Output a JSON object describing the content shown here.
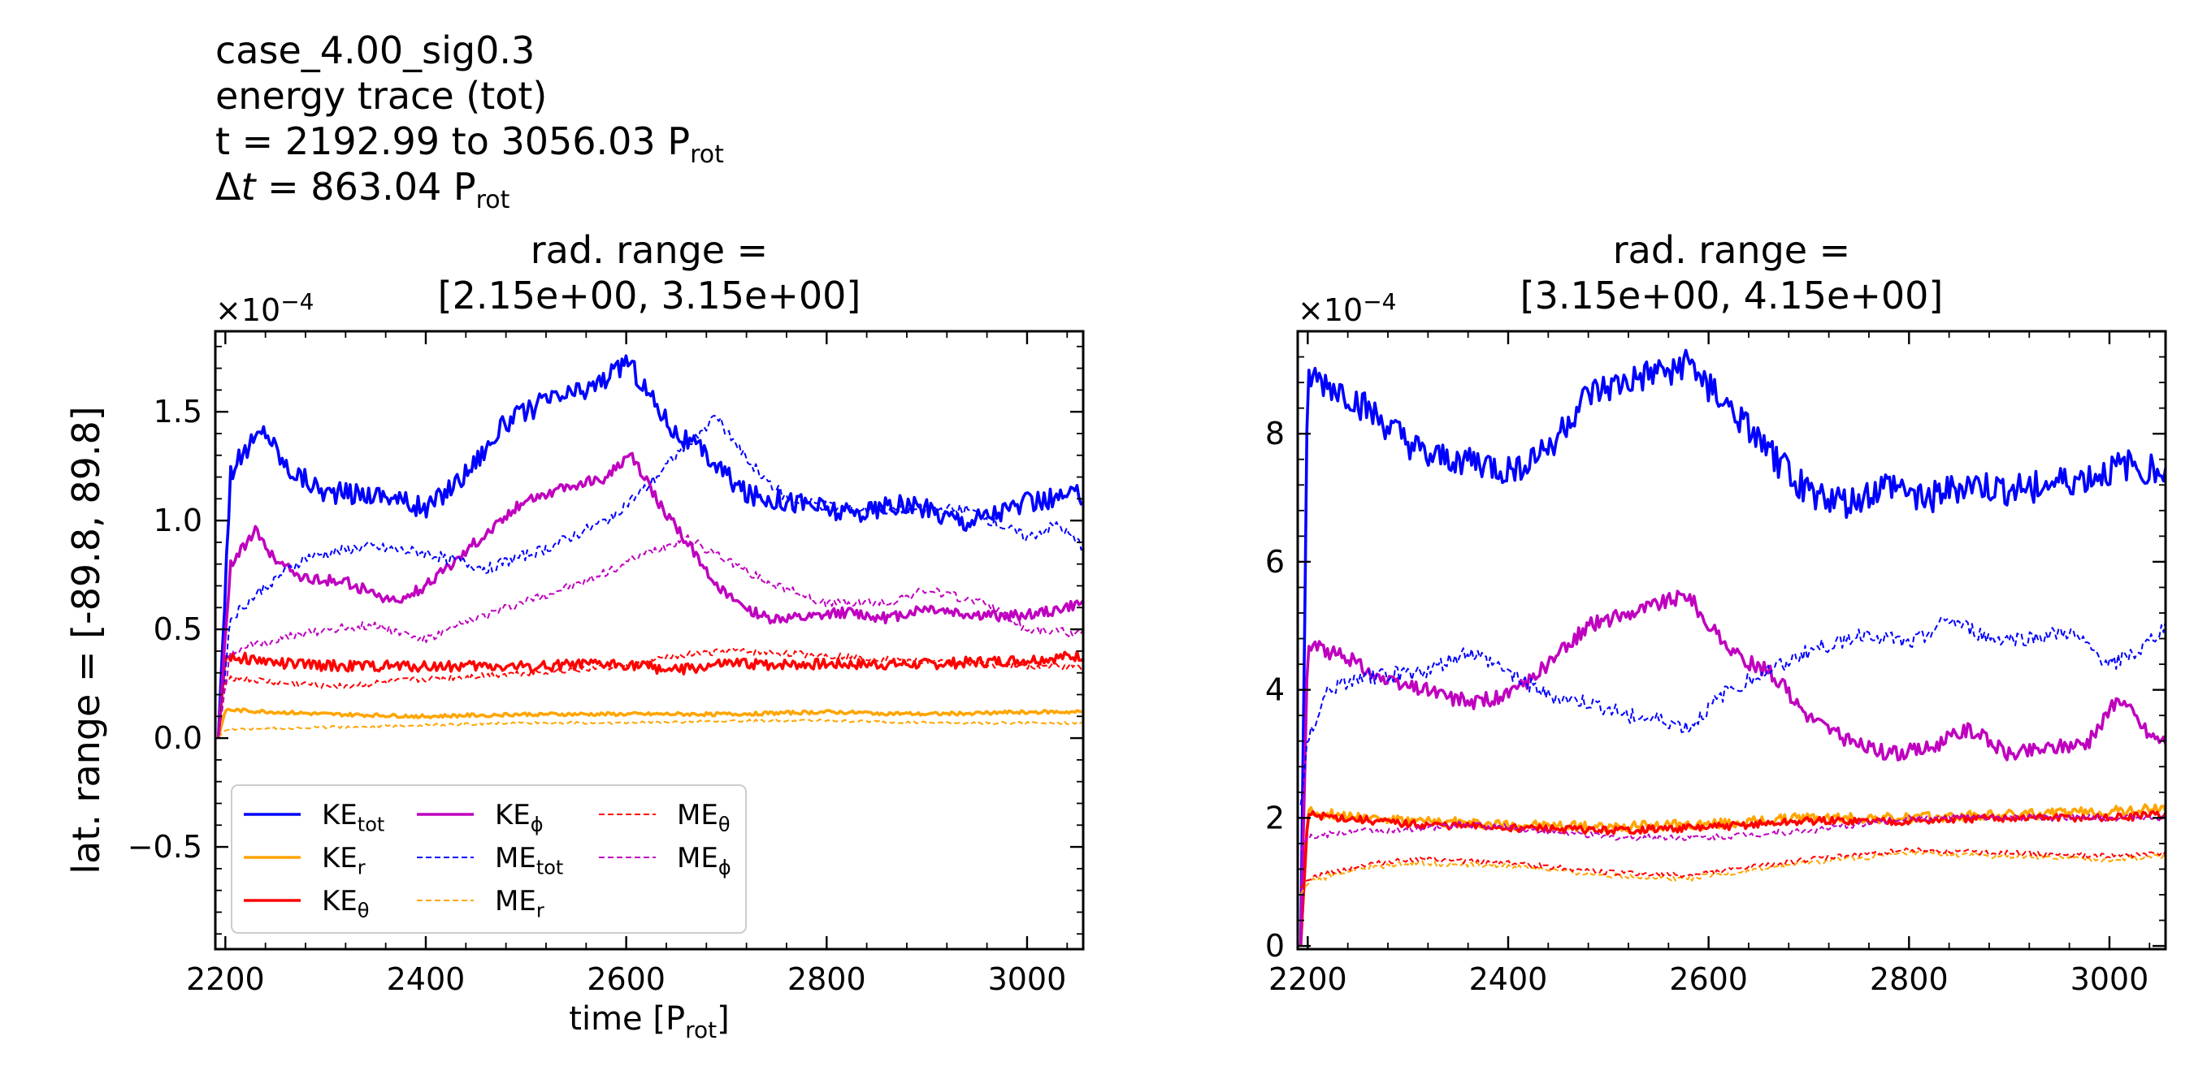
{
  "header": {
    "case": "case_4.00_sig0.3",
    "quantity": "energy trace (tot)",
    "time_line_prefix": "t = 2192.99 to 3056.03 P",
    "time_line_sub": "rot",
    "dt_symbol": "Δ",
    "dt_var": "t",
    "dt_value": " = 863.04 P",
    "dt_sub": "rot"
  },
  "colors": {
    "KE_tot": "#0000ff",
    "KE_r": "#ffa500",
    "KE_theta": "#ff0000",
    "KE_phi": "#bf00bf",
    "ME_tot": "#0000ff",
    "ME_r": "#ffa500",
    "ME_theta": "#ff0000",
    "ME_phi": "#bf00bf"
  },
  "chart_data": [
    {
      "type": "line",
      "title_line1": "rad. range =",
      "title_line2": "[2.15e+00, 3.15e+00]",
      "xlabel": "time [P",
      "xlabel_sub": "rot",
      "xlabel_end": "]",
      "ylabel": "lat. range = [-89.8, 89.8]",
      "offset_label": "×10",
      "offset_exp": "−4",
      "xlim": [
        2190,
        3056
      ],
      "ylim": [
        -0.97,
        1.87
      ],
      "xticks": [
        2200,
        2400,
        2600,
        2800,
        3000
      ],
      "xtick_labels": [
        "2200",
        "2400",
        "2600",
        "2800",
        "3000"
      ],
      "yticks": [
        -0.5,
        0.0,
        0.5,
        1.0,
        1.5
      ],
      "ytick_labels": [
        "−0.5",
        "0.0",
        "0.5",
        "1.0",
        "1.5"
      ],
      "legend": {
        "placement": "lower-left",
        "entries": [
          {
            "base": "KE",
            "sub": "tot"
          },
          {
            "base": "KE",
            "sub": "r"
          },
          {
            "base": "KE",
            "sub": "θ"
          },
          {
            "base": "KE",
            "sub": "ϕ"
          },
          {
            "base": "ME",
            "sub": "tot"
          },
          {
            "base": "ME",
            "sub": "r"
          },
          {
            "base": "ME",
            "sub": "θ"
          },
          {
            "base": "ME",
            "sub": "ϕ"
          }
        ]
      },
      "series": [
        {
          "name": "KE_tot",
          "style": "solid",
          "x": [
            2193,
            2205,
            2225,
            2240,
            2260,
            2300,
            2360,
            2400,
            2440,
            2480,
            2520,
            2560,
            2590,
            2600,
            2620,
            2650,
            2680,
            2720,
            2780,
            2820,
            2880,
            2940,
            3000,
            3056
          ],
          "values": [
            0.0,
            1.22,
            1.35,
            1.42,
            1.25,
            1.13,
            1.12,
            1.05,
            1.22,
            1.45,
            1.55,
            1.6,
            1.68,
            1.75,
            1.6,
            1.4,
            1.3,
            1.12,
            1.08,
            1.03,
            1.07,
            1.0,
            1.08,
            1.12
          ]
        },
        {
          "name": "KE_r",
          "style": "solid",
          "x": [
            2193,
            2200,
            2300,
            2400,
            2500,
            2600,
            2700,
            2800,
            2900,
            3000,
            3056
          ],
          "values": [
            0.0,
            0.13,
            0.11,
            0.1,
            0.11,
            0.11,
            0.11,
            0.12,
            0.11,
            0.12,
            0.12
          ]
        },
        {
          "name": "KE_theta",
          "style": "solid",
          "x": [
            2193,
            2200,
            2260,
            2320,
            2400,
            2500,
            2600,
            2650,
            2700,
            2800,
            2900,
            3000,
            3056
          ],
          "values": [
            0.0,
            0.38,
            0.34,
            0.33,
            0.33,
            0.33,
            0.34,
            0.31,
            0.34,
            0.34,
            0.34,
            0.36,
            0.38
          ]
        },
        {
          "name": "KE_phi",
          "style": "solid",
          "x": [
            2193,
            2205,
            2230,
            2250,
            2280,
            2320,
            2370,
            2400,
            2450,
            2500,
            2540,
            2580,
            2605,
            2630,
            2660,
            2700,
            2740,
            2780,
            2820,
            2860,
            2900,
            2940,
            2980,
            3020,
            3056
          ],
          "values": [
            0.0,
            0.8,
            0.95,
            0.82,
            0.73,
            0.72,
            0.62,
            0.7,
            0.9,
            1.1,
            1.15,
            1.2,
            1.3,
            1.1,
            0.9,
            0.65,
            0.55,
            0.55,
            0.58,
            0.55,
            0.6,
            0.57,
            0.56,
            0.58,
            0.62
          ]
        },
        {
          "name": "ME_tot",
          "style": "dashed",
          "x": [
            2193,
            2205,
            2240,
            2280,
            2340,
            2400,
            2460,
            2520,
            2580,
            2620,
            2660,
            2690,
            2720,
            2760,
            2820,
            2880,
            2940,
            3000,
            3030,
            3056
          ],
          "values": [
            0.0,
            0.55,
            0.7,
            0.83,
            0.88,
            0.85,
            0.78,
            0.87,
            1.0,
            1.15,
            1.35,
            1.48,
            1.28,
            1.1,
            1.05,
            1.05,
            1.05,
            0.92,
            0.98,
            0.88
          ]
        },
        {
          "name": "ME_r",
          "style": "dashed",
          "x": [
            2193,
            2200,
            2300,
            2400,
            2500,
            2600,
            2700,
            2800,
            2900,
            3000,
            3056
          ],
          "values": [
            0.0,
            0.04,
            0.05,
            0.06,
            0.07,
            0.07,
            0.08,
            0.08,
            0.07,
            0.07,
            0.07
          ]
        },
        {
          "name": "ME_theta",
          "style": "dashed",
          "x": [
            2193,
            2200,
            2260,
            2320,
            2400,
            2500,
            2600,
            2650,
            2700,
            2800,
            2900,
            3000,
            3056
          ],
          "values": [
            0.0,
            0.28,
            0.25,
            0.24,
            0.27,
            0.3,
            0.33,
            0.38,
            0.4,
            0.38,
            0.35,
            0.33,
            0.33
          ]
        },
        {
          "name": "ME_phi",
          "style": "dashed",
          "x": [
            2193,
            2205,
            2250,
            2300,
            2350,
            2400,
            2450,
            2500,
            2560,
            2620,
            2660,
            2700,
            2740,
            2800,
            2860,
            2900,
            2960,
            3000,
            3056
          ],
          "values": [
            0.0,
            0.4,
            0.45,
            0.5,
            0.52,
            0.45,
            0.55,
            0.63,
            0.72,
            0.85,
            0.92,
            0.82,
            0.72,
            0.62,
            0.62,
            0.68,
            0.62,
            0.5,
            0.48
          ]
        }
      ]
    },
    {
      "type": "line",
      "title_line1": "rad. range =",
      "title_line2": "[3.15e+00, 4.15e+00]",
      "offset_label": "×10",
      "offset_exp": "−4",
      "xlim": [
        2190,
        3056
      ],
      "ylim": [
        -0.05,
        9.6
      ],
      "xticks": [
        2200,
        2400,
        2600,
        2800,
        3000
      ],
      "xtick_labels": [
        "2200",
        "2400",
        "2600",
        "2800",
        "3000"
      ],
      "yticks": [
        0,
        2,
        4,
        6,
        8
      ],
      "ytick_labels": [
        "0",
        "2",
        "4",
        "6",
        "8"
      ],
      "series": [
        {
          "name": "KE_tot",
          "style": "solid",
          "x": [
            2193,
            2200,
            2240,
            2280,
            2320,
            2360,
            2400,
            2440,
            2480,
            2520,
            2560,
            2580,
            2620,
            2660,
            2700,
            2740,
            2780,
            2820,
            2860,
            2900,
            2940,
            2980,
            3020,
            3056
          ],
          "values": [
            0.0,
            8.9,
            8.6,
            8.1,
            7.6,
            7.6,
            7.4,
            7.8,
            8.6,
            8.8,
            9.0,
            9.1,
            8.4,
            7.7,
            7.1,
            6.9,
            7.2,
            7.0,
            7.2,
            7.1,
            7.2,
            7.3,
            7.5,
            7.4
          ]
        },
        {
          "name": "KE_r",
          "style": "solid",
          "x": [
            2193,
            2200,
            2300,
            2400,
            2500,
            2600,
            2700,
            2800,
            2900,
            3000,
            3056
          ],
          "values": [
            0.0,
            2.1,
            1.95,
            1.9,
            1.85,
            1.9,
            2.0,
            2.0,
            2.05,
            2.1,
            2.15
          ]
        },
        {
          "name": "KE_theta",
          "style": "solid",
          "x": [
            2193,
            2200,
            2300,
            2400,
            2500,
            2600,
            2700,
            2800,
            2900,
            3000,
            3056
          ],
          "values": [
            0.0,
            2.05,
            1.9,
            1.85,
            1.8,
            1.85,
            1.95,
            1.95,
            2.0,
            2.0,
            2.05
          ]
        },
        {
          "name": "KE_phi",
          "style": "solid",
          "x": [
            2193,
            2200,
            2240,
            2280,
            2320,
            2360,
            2400,
            2440,
            2480,
            2520,
            2560,
            2580,
            2600,
            2630,
            2660,
            2700,
            2740,
            2780,
            2820,
            2860,
            2900,
            2940,
            2980,
            3010,
            3040,
            3056
          ],
          "values": [
            0.0,
            4.7,
            4.5,
            4.1,
            4.0,
            3.8,
            3.9,
            4.4,
            5.0,
            5.2,
            5.4,
            5.5,
            5.0,
            4.5,
            4.3,
            3.6,
            3.2,
            3.0,
            3.1,
            3.4,
            3.0,
            3.1,
            3.2,
            3.9,
            3.3,
            3.2
          ]
        },
        {
          "name": "ME_tot",
          "style": "dashed",
          "x": [
            2193,
            2200,
            2220,
            2260,
            2320,
            2360,
            2400,
            2440,
            2480,
            2520,
            2560,
            2580,
            2620,
            2660,
            2700,
            2760,
            2800,
            2840,
            2880,
            2920,
            2960,
            3000,
            3030,
            3056
          ],
          "values": [
            2.2,
            3.2,
            4.0,
            4.2,
            4.3,
            4.6,
            4.3,
            3.9,
            3.8,
            3.6,
            3.5,
            3.4,
            4.0,
            4.3,
            4.6,
            4.9,
            4.7,
            5.1,
            4.8,
            4.8,
            4.9,
            4.4,
            4.6,
            5.0
          ]
        },
        {
          "name": "ME_r",
          "style": "dashed",
          "x": [
            2193,
            2200,
            2250,
            2300,
            2400,
            2500,
            2580,
            2650,
            2700,
            2800,
            2900,
            3000,
            3056
          ],
          "values": [
            0.8,
            1.0,
            1.2,
            1.3,
            1.25,
            1.1,
            1.05,
            1.2,
            1.3,
            1.45,
            1.4,
            1.35,
            1.4
          ]
        },
        {
          "name": "ME_theta",
          "style": "dashed",
          "x": [
            2193,
            2200,
            2250,
            2300,
            2400,
            2500,
            2580,
            2650,
            2700,
            2800,
            2900,
            3000,
            3056
          ],
          "values": [
            0.9,
            1.05,
            1.25,
            1.35,
            1.3,
            1.15,
            1.1,
            1.25,
            1.35,
            1.5,
            1.45,
            1.4,
            1.45
          ]
        },
        {
          "name": "ME_phi",
          "style": "dashed",
          "x": [
            2193,
            2200,
            2250,
            2300,
            2350,
            2400,
            2500,
            2600,
            2700,
            2800,
            2900,
            3000,
            3056
          ],
          "values": [
            1.5,
            1.7,
            1.8,
            1.8,
            1.9,
            1.85,
            1.7,
            1.7,
            1.8,
            2.0,
            2.0,
            2.0,
            2.0
          ]
        }
      ]
    }
  ]
}
